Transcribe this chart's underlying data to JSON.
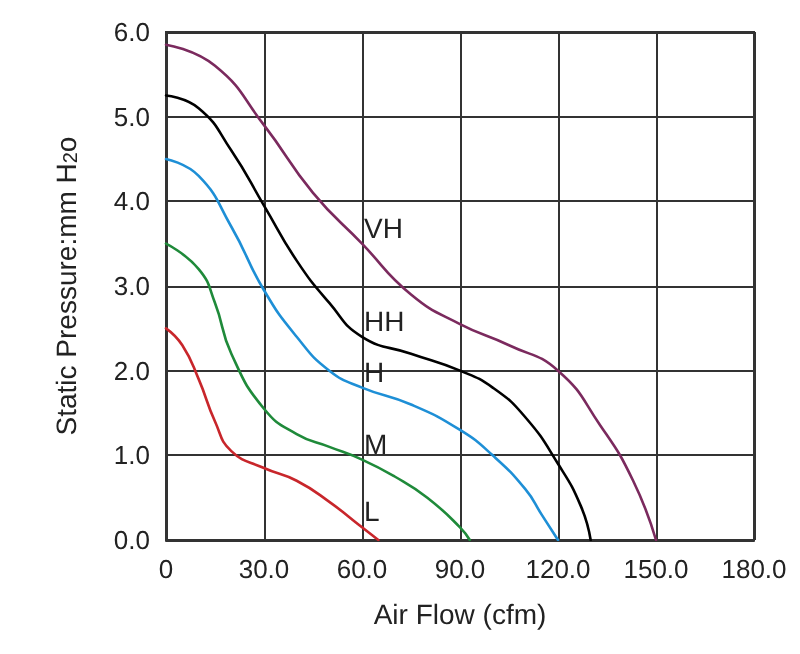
{
  "chart_data": {
    "type": "line",
    "xlabel": "Air Flow (cfm)",
    "ylabel": "Static Pressure:mm H$_{2}$o",
    "xlim": [
      0,
      180
    ],
    "xticks": [
      {
        "value": 0,
        "label": "0"
      },
      {
        "value": 30,
        "label": "30.0"
      },
      {
        "value": 60,
        "label": "60.0"
      },
      {
        "value": 90,
        "label": "90.0"
      },
      {
        "value": 120,
        "label": "120.0"
      },
      {
        "value": 150,
        "label": "150.0"
      },
      {
        "value": 180,
        "label": "180.0"
      }
    ],
    "ylim": [
      0,
      6
    ],
    "yticks": [
      {
        "value": 0,
        "label": "0.0"
      },
      {
        "value": 1,
        "label": "1.0"
      },
      {
        "value": 2,
        "label": "2.0"
      },
      {
        "value": 3,
        "label": "3.0"
      },
      {
        "value": 4,
        "label": "4.0"
      },
      {
        "value": 5,
        "label": "5.0"
      },
      {
        "value": 6,
        "label": "6.0"
      }
    ],
    "grid": true,
    "marker": "none",
    "line_style": "solid",
    "series": [
      {
        "name": "VH",
        "color": "#7b2a5e",
        "x": [
          0,
          15,
          30,
          45,
          60,
          75,
          90,
          105,
          120,
          133,
          143,
          150
        ],
        "values": [
          5.85,
          5.6,
          4.9,
          4.1,
          3.5,
          2.9,
          2.55,
          2.3,
          2.0,
          1.35,
          0.7,
          0
        ]
      },
      {
        "name": "HH",
        "color": "#000000",
        "x": [
          0,
          10,
          20,
          30,
          40,
          50,
          60,
          75,
          90,
          100,
          110,
          120,
          127,
          130
        ],
        "values": [
          5.25,
          5.1,
          4.6,
          3.95,
          3.3,
          2.8,
          2.4,
          2.2,
          2.0,
          1.8,
          1.45,
          0.9,
          0.4,
          0
        ]
      },
      {
        "name": "H",
        "color": "#1e8fd6",
        "x": [
          0,
          10,
          20,
          30,
          40,
          50,
          60,
          75,
          90,
          100,
          110,
          115,
          120
        ],
        "values": [
          4.5,
          4.3,
          3.7,
          2.95,
          2.4,
          2.0,
          1.8,
          1.6,
          1.3,
          1.0,
          0.6,
          0.3,
          0
        ]
      },
      {
        "name": "M",
        "color": "#1f8a3a",
        "x": [
          0,
          10,
          15,
          20,
          30,
          40,
          50,
          60,
          70,
          80,
          90,
          93
        ],
        "values": [
          3.5,
          3.2,
          2.8,
          2.2,
          1.55,
          1.25,
          1.1,
          0.95,
          0.75,
          0.5,
          0.15,
          0
        ]
      },
      {
        "name": "L",
        "color": "#c8262b",
        "x": [
          0,
          5,
          10,
          15,
          20,
          30,
          40,
          50,
          60,
          65
        ],
        "values": [
          2.5,
          2.3,
          1.9,
          1.4,
          1.05,
          0.85,
          0.7,
          0.45,
          0.15,
          0
        ]
      }
    ]
  }
}
